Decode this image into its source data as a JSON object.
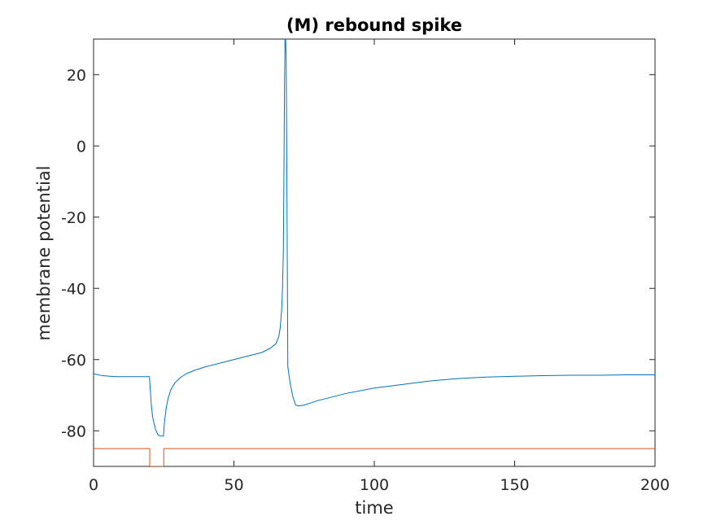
{
  "chart_data": {
    "type": "line",
    "title": "(M) rebound spike",
    "xlabel": "time",
    "ylabel": "membrane potential",
    "xlim": [
      0,
      200
    ],
    "ylim": [
      -90,
      30
    ],
    "xticks": [
      0,
      50,
      100,
      150,
      200
    ],
    "xtick_labels": [
      "0",
      "50",
      "100",
      "150",
      "200"
    ],
    "yticks": [
      -80,
      -60,
      -40,
      -20,
      0,
      20
    ],
    "ytick_labels": [
      "-80",
      "-60",
      "-40",
      "-20",
      "0",
      "20"
    ],
    "grid": false,
    "box": true,
    "colors": {
      "membrane": "#0072BD",
      "input": "#D95319",
      "axes": "#262626"
    },
    "series": [
      {
        "key": "membrane",
        "x": [
          0,
          3,
          8,
          14,
          19.9,
          20,
          20.5,
          21,
          22,
          23,
          24,
          24.9,
          25.2,
          25.8,
          26.5,
          27.5,
          29,
          31,
          33,
          36,
          40,
          45,
          50,
          55,
          60,
          63,
          65,
          66,
          66.5,
          67,
          67.3,
          67.6,
          67.8,
          68,
          68.2,
          68.4,
          68.6,
          68.8,
          69.2,
          70,
          71,
          72,
          73,
          75,
          80,
          90,
          100,
          110,
          120,
          130,
          140,
          150,
          160,
          170,
          180,
          190,
          200
        ],
        "y": [
          -64,
          -64.5,
          -64.8,
          -64.8,
          -64.8,
          -66,
          -72,
          -76,
          -79.5,
          -81.2,
          -81.5,
          -81.5,
          -78,
          -74,
          -71,
          -68.5,
          -66.5,
          -65,
          -64,
          -63,
          -62,
          -61,
          -60,
          -59,
          -58,
          -56.8,
          -55.5,
          -53.5,
          -51,
          -46,
          -40,
          -30,
          -10,
          15,
          30,
          30,
          25,
          0,
          -62,
          -66.5,
          -70.5,
          -72.8,
          -73,
          -72.8,
          -71.5,
          -69.5,
          -68,
          -67,
          -66,
          -65.3,
          -64.9,
          -64.7,
          -64.5,
          -64.4,
          -64.4,
          -64.3,
          -64.3
        ]
      },
      {
        "key": "input",
        "x": [
          0,
          20,
          20,
          25,
          25,
          200
        ],
        "y": [
          -85,
          -85,
          -90,
          -90,
          -85,
          -85
        ]
      }
    ]
  }
}
